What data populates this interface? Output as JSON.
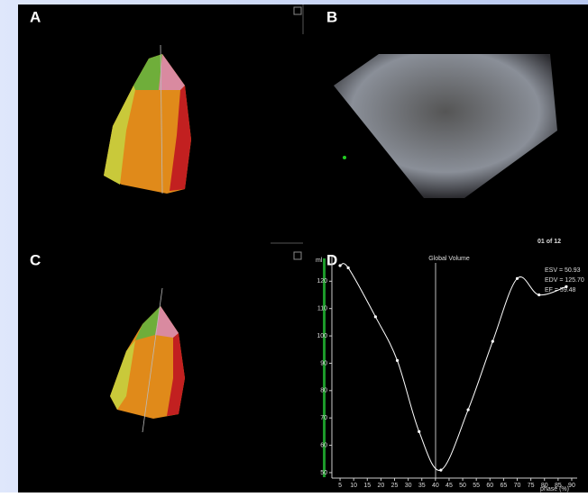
{
  "panels": {
    "a": "A",
    "b": "B",
    "c": "C",
    "d": "D"
  },
  "frame_counter": "01 of 12",
  "chart_data": {
    "type": "line",
    "title": "Global Volume",
    "xlabel": "phase (%)",
    "ylabel": "ml",
    "annotations": [
      "ESV = 50.93",
      "EDV = 125.70",
      "EF = 59.48"
    ],
    "x": [
      5,
      8,
      18,
      26,
      34,
      42,
      52,
      61,
      70,
      78,
      88
    ],
    "values": [
      125.7,
      124.9,
      107,
      91,
      65,
      50.93,
      73,
      98,
      121,
      115,
      118
    ],
    "color": "#ffffff",
    "xlim": [
      2,
      92
    ],
    "ylim": [
      48,
      129
    ],
    "xticks": [
      5,
      10,
      15,
      20,
      25,
      30,
      35,
      40,
      45,
      50,
      55,
      60,
      65,
      70,
      75,
      80,
      85,
      90
    ],
    "yticks": [
      50,
      60,
      70,
      80,
      90,
      100,
      110,
      120
    ]
  }
}
